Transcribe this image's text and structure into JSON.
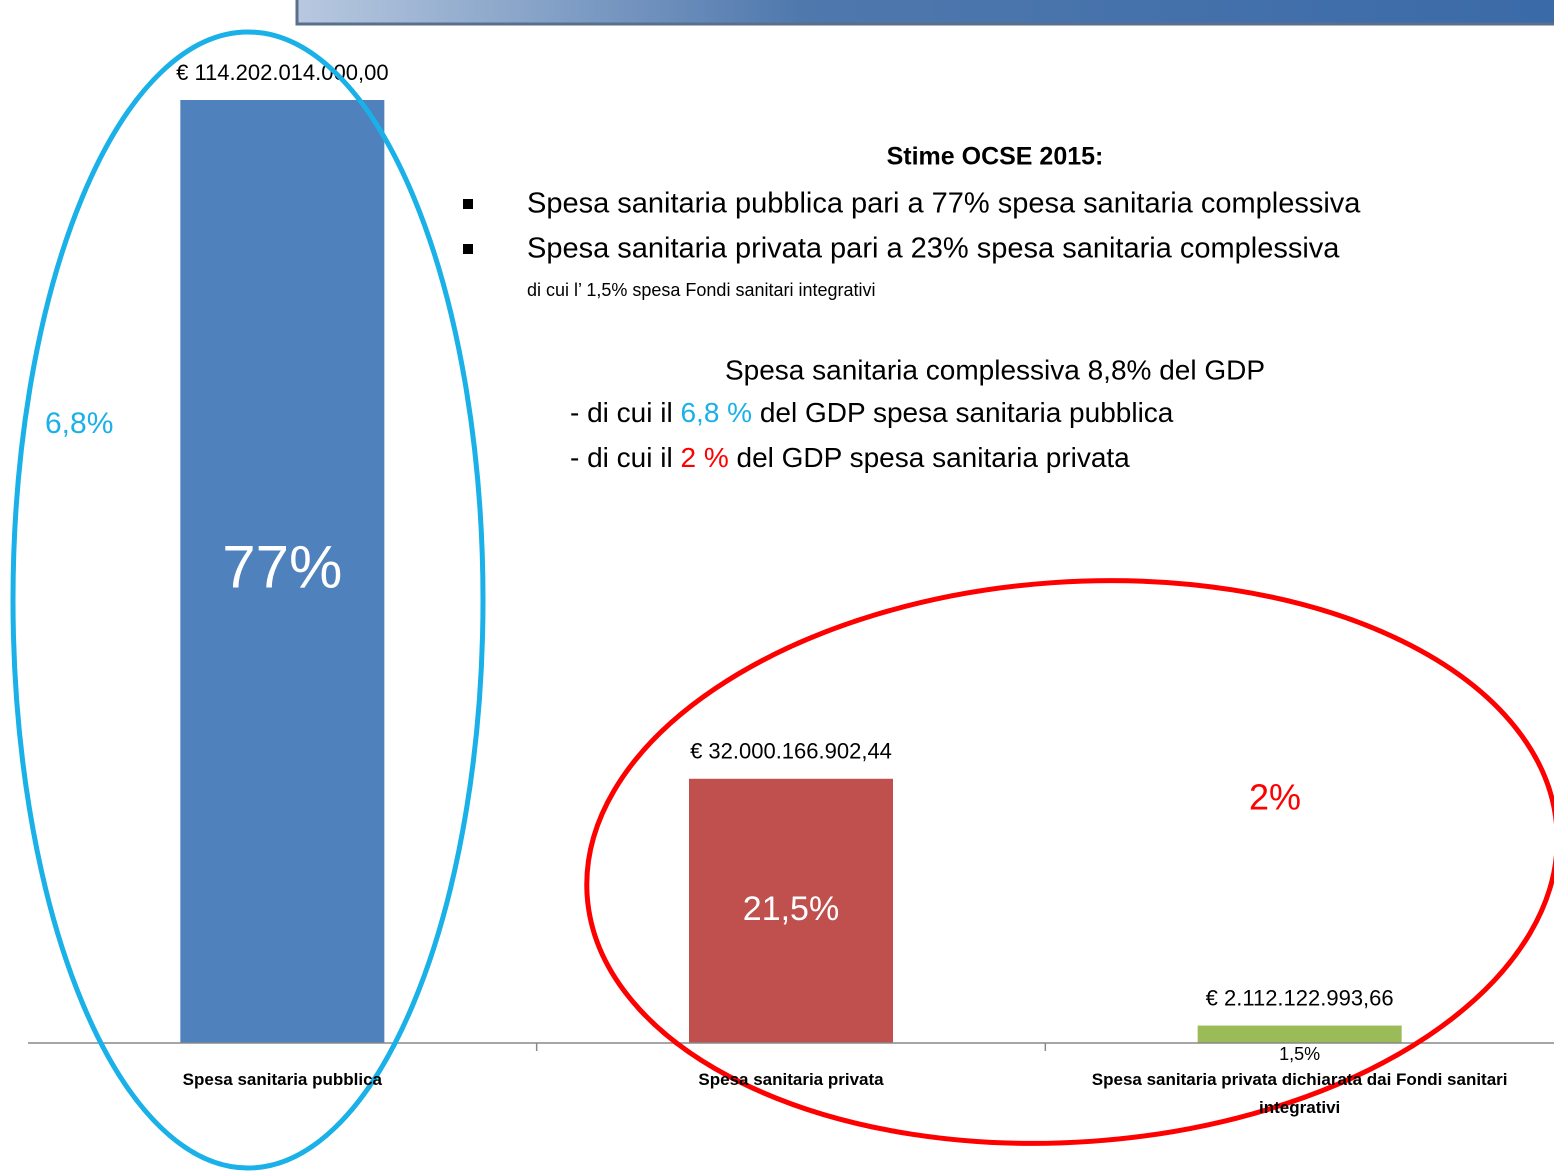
{
  "chart_data": {
    "type": "bar",
    "categories": [
      "Spesa sanitaria pubblica",
      "Spesa sanitaria privata",
      "Spesa sanitaria privata dichiarata dai Fondi sanitari integrativi"
    ],
    "values": [
      114202014000,
      32000166902.44,
      2112122993.66
    ],
    "value_labels": [
      "€ 114.202.014.000,00",
      "€ 32.000.166.902,44",
      "€ 2.112.122.993,66"
    ],
    "share_labels": [
      "77%",
      "21,5%",
      "1,5%"
    ],
    "colors": [
      "#4f81bd",
      "#c0504d",
      "#9bbb59"
    ],
    "annotations": {
      "public_gdp": "6,8%",
      "private_gdp": "2%",
      "heading": "Stime OCSE 2015:",
      "bullets": [
        "Spesa sanitaria pubblica pari a  77% spesa sanitaria complessiva",
        "Spesa sanitaria privata  pari a 23% spesa sanitaria complessiva"
      ],
      "sub_note": "di cui l’ 1,5% spesa Fondi sanitari integrativi",
      "gdp_total": "Spesa sanitaria complessiva 8,8% del GDP",
      "gdp_public": [
        "- di cui  il ",
        "6,8 %",
        " del GDP spesa sanitaria pubblica"
      ],
      "gdp_private": [
        "- di cui il ",
        "2 %",
        " del GDP spesa sanitaria privata"
      ]
    }
  }
}
